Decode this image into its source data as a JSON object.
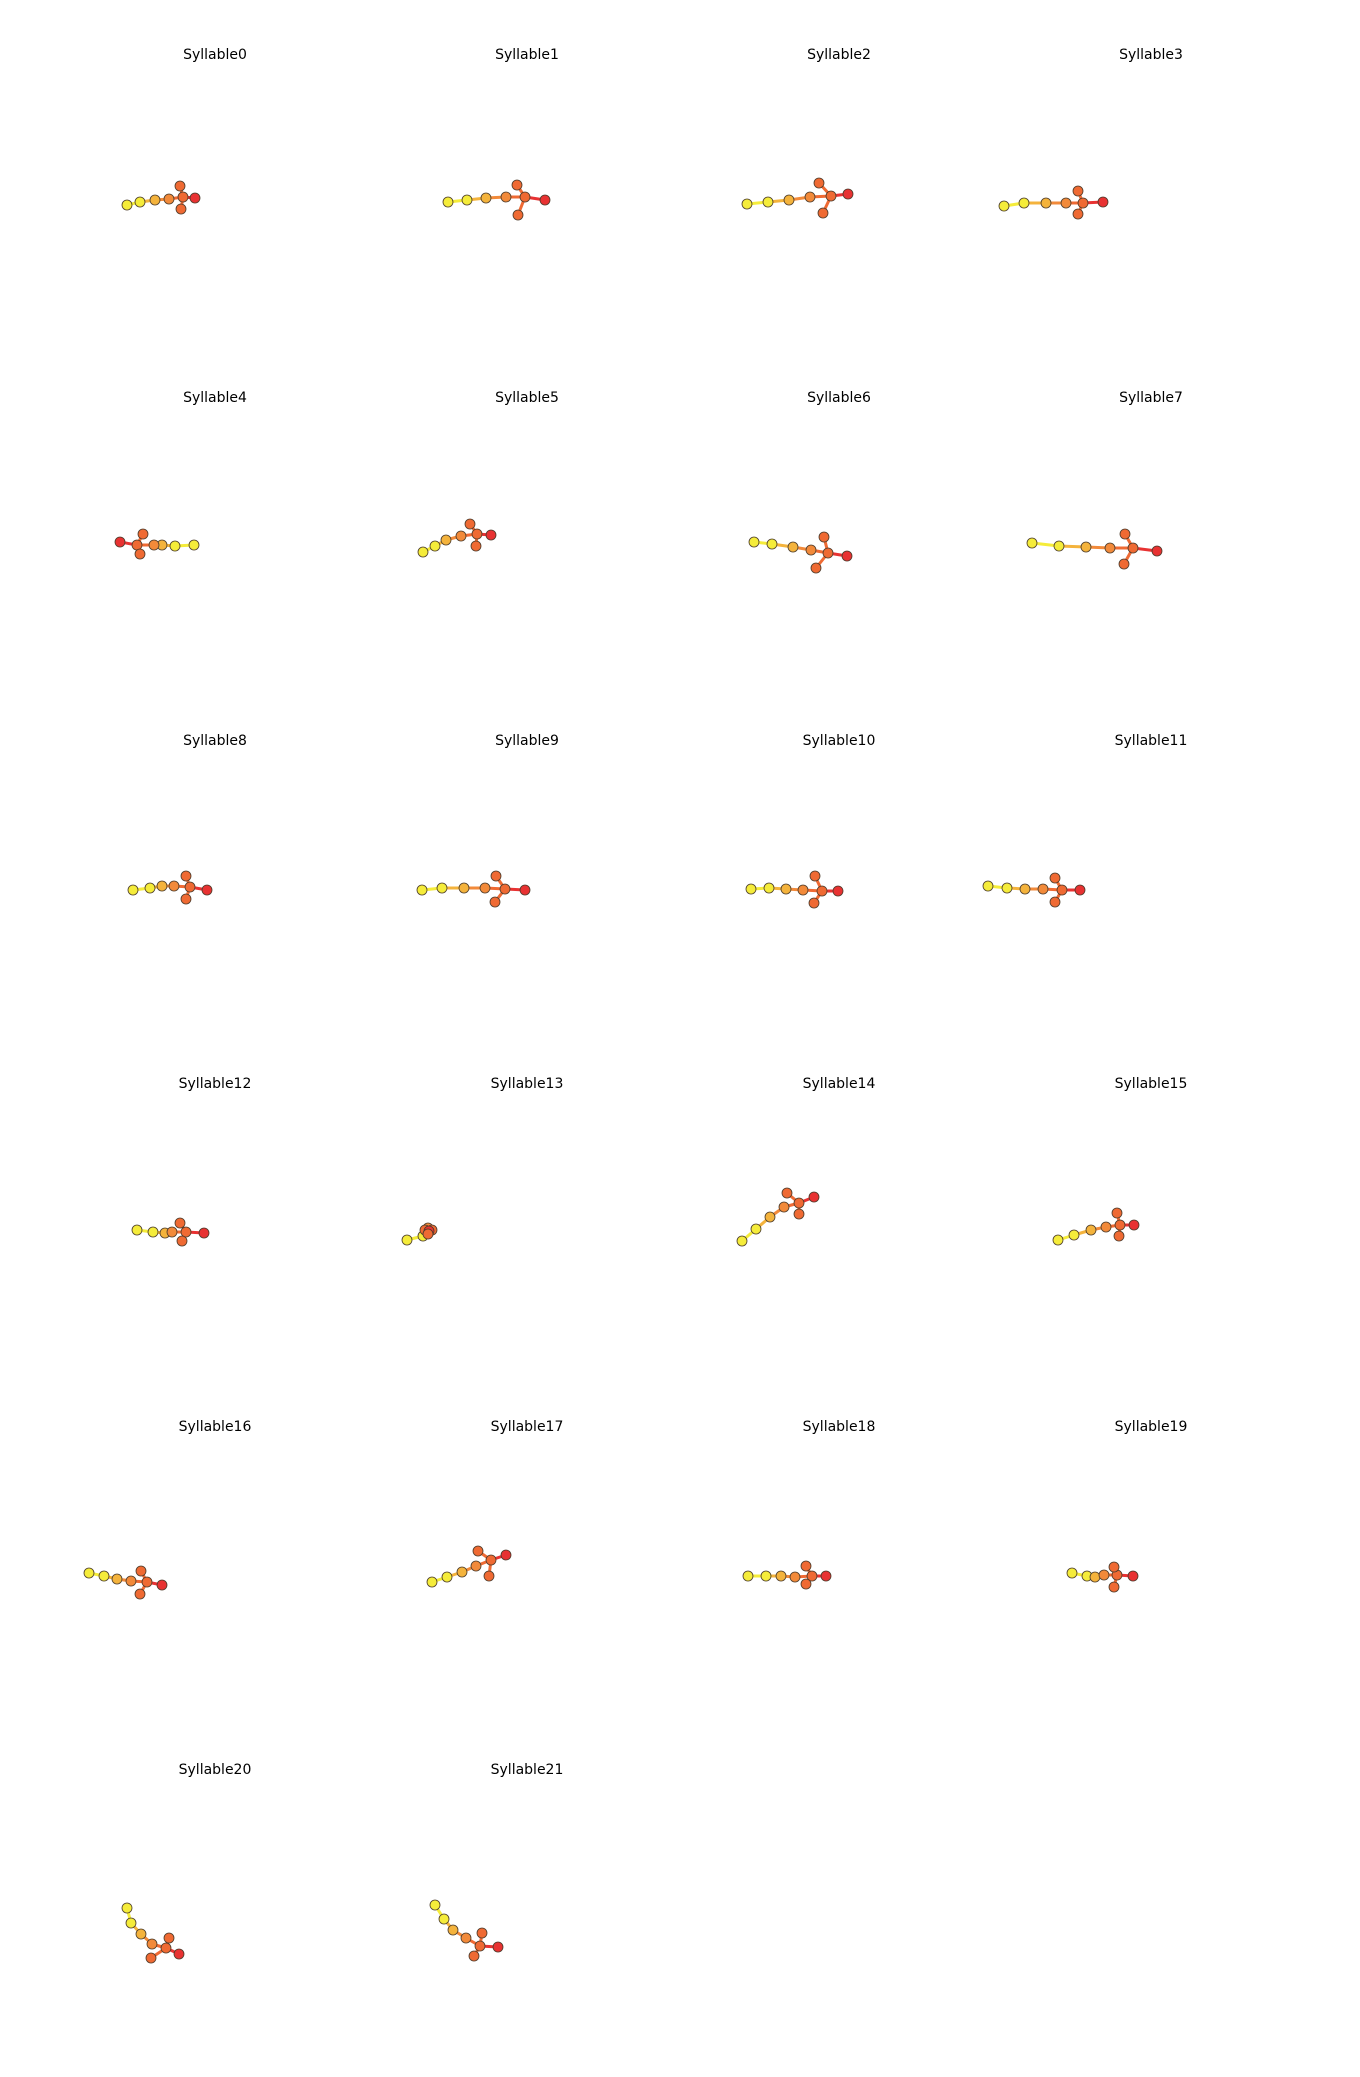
{
  "chart_data": [
    {
      "type": "scatter",
      "title": "Syllable0"
    },
    {
      "type": "scatter",
      "title": "Syllable1"
    },
    {
      "type": "scatter",
      "title": "Syllable2"
    },
    {
      "type": "scatter",
      "title": "Syllable3"
    },
    {
      "type": "scatter",
      "title": "Syllable4"
    },
    {
      "type": "scatter",
      "title": "Syllable5"
    },
    {
      "type": "scatter",
      "title": "Syllable6"
    },
    {
      "type": "scatter",
      "title": "Syllable7"
    },
    {
      "type": "scatter",
      "title": "Syllable8"
    },
    {
      "type": "scatter",
      "title": "Syllable9"
    },
    {
      "type": "scatter",
      "title": "Syllable10"
    },
    {
      "type": "scatter",
      "title": "Syllable11"
    },
    {
      "type": "scatter",
      "title": "Syllable12"
    },
    {
      "type": "scatter",
      "title": "Syllable13"
    },
    {
      "type": "scatter",
      "title": "Syllable14"
    },
    {
      "type": "scatter",
      "title": "Syllable15"
    },
    {
      "type": "scatter",
      "title": "Syllable16"
    },
    {
      "type": "scatter",
      "title": "Syllable17"
    },
    {
      "type": "scatter",
      "title": "Syllable18"
    },
    {
      "type": "scatter",
      "title": "Syllable19"
    },
    {
      "type": "scatter",
      "title": "Syllable20"
    },
    {
      "type": "scatter",
      "title": "Syllable21"
    }
  ],
  "colors": {
    "tail": "#f5ec3a",
    "mid": "#f4b33c",
    "body": "#f28a3a",
    "limb": "#ef6a33",
    "head": "#e83232",
    "node_edge": "#4a3a2a"
  }
}
